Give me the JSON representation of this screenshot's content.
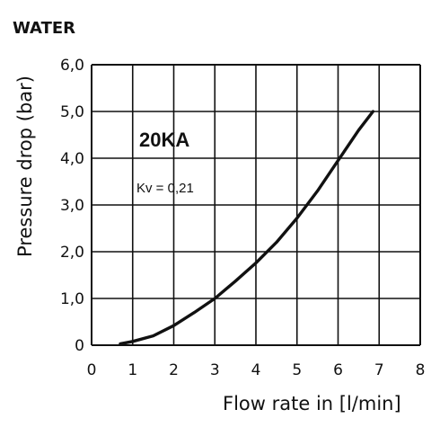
{
  "chart_data": {
    "type": "line",
    "title": "WATER",
    "xlabel": "Flow rate in [l/min]",
    "ylabel": "Pressure drop (bar)",
    "xlim": [
      0,
      8
    ],
    "ylim": [
      0,
      6
    ],
    "x_ticks": [
      "0",
      "1",
      "2",
      "3",
      "4",
      "5",
      "6",
      "7",
      "8"
    ],
    "y_ticks": [
      "0",
      "1,0",
      "2,0",
      "3,0",
      "4,0",
      "5,0",
      "6,0"
    ],
    "grid": true,
    "annotations": {
      "model": "20KA",
      "kv": "Kv = 0,21"
    },
    "series": [
      {
        "color": "#111111",
        "x": [
          0.7,
          1.0,
          1.5,
          2.0,
          2.5,
          3.0,
          3.5,
          4.0,
          4.5,
          5.0,
          5.5,
          6.0,
          6.5,
          6.85
        ],
        "y": [
          0.03,
          0.08,
          0.2,
          0.42,
          0.7,
          1.0,
          1.37,
          1.76,
          2.2,
          2.72,
          3.3,
          3.95,
          4.6,
          5.0
        ]
      }
    ]
  }
}
